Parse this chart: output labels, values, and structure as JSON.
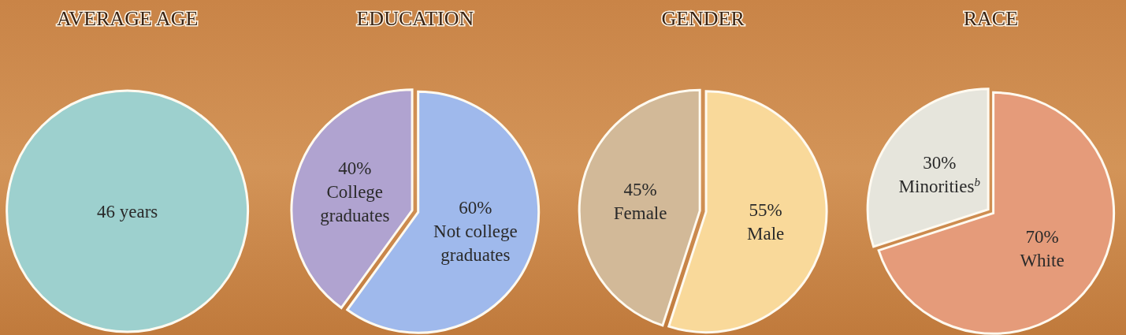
{
  "chart_data": [
    {
      "type": "pie",
      "title": "AVERAGE AGE",
      "categories": [
        "46 years"
      ],
      "values": [
        100
      ],
      "colors": [
        "#9dd0ce"
      ]
    },
    {
      "type": "pie",
      "title": "EDUCATION",
      "categories": [
        "Not college graduates",
        "College graduates"
      ],
      "values": [
        60,
        40
      ],
      "value_labels": [
        "60%",
        "40%"
      ],
      "colors": [
        "#9fb9ec",
        "#b0a3d0"
      ]
    },
    {
      "type": "pie",
      "title": "GENDER",
      "categories": [
        "Male",
        "Female"
      ],
      "values": [
        55,
        45
      ],
      "value_labels": [
        "55%",
        "45%"
      ],
      "colors": [
        "#f9d99a",
        "#d2b998"
      ]
    },
    {
      "type": "pie",
      "title": "RACE",
      "categories": [
        "White",
        "Minorities$^{b}$"
      ],
      "values": [
        70,
        30
      ],
      "value_labels": [
        "70%",
        "30%"
      ],
      "colors": [
        "#e59b7a",
        "#e6e5dc"
      ]
    }
  ]
}
